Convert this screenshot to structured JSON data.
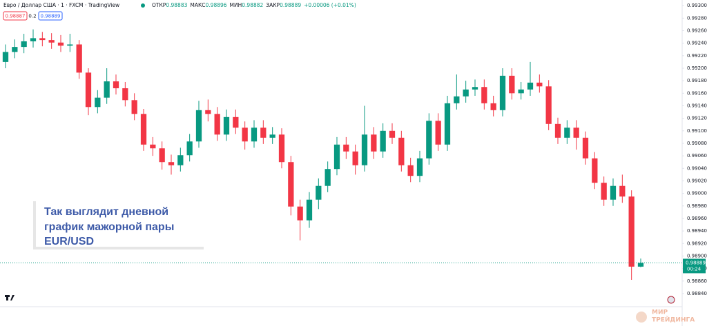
{
  "chart_data": {
    "type": "candlestick",
    "title": "Евро / Доллар США · 1 · FXCM · TradingView",
    "ohlc_labels": [
      "ОТКР",
      "МАКС",
      "МИН",
      "ЗАКР"
    ],
    "change": "+0.00006 (+0.01%)",
    "quote": {
      "bid": "0.98887",
      "spread": "0.2",
      "ask": "0.98889"
    },
    "countdown": "00:24",
    "annotation": [
      "Так выглядит дневной",
      "график мажорной пары",
      "EUR/USD"
    ],
    "watermark": [
      "МИР",
      "ТРЕЙДИНГА"
    ],
    "up_color": "#089981",
    "down_color": "#f23645",
    "ylim": [
      0.98819,
      0.99309
    ],
    "yticks": [
      {
        "value": 0.993,
        "label": "0.99300"
      },
      {
        "value": 0.9928,
        "label": "0.99280"
      },
      {
        "value": 0.9926,
        "label": "0.99260"
      },
      {
        "value": 0.9924,
        "label": "0.99240"
      },
      {
        "value": 0.9922,
        "label": "0.99220"
      },
      {
        "value": 0.992,
        "label": "0.99200"
      },
      {
        "value": 0.9918,
        "label": "0.99180"
      },
      {
        "value": 0.9916,
        "label": "0.99160"
      },
      {
        "value": 0.9914,
        "label": "0.99140"
      },
      {
        "value": 0.9912,
        "label": "0.99120"
      },
      {
        "value": 0.991,
        "label": "0.99100"
      },
      {
        "value": 0.9908,
        "label": "0.99080"
      },
      {
        "value": 0.9906,
        "label": "0.99060"
      },
      {
        "value": 0.9904,
        "label": "0.99040"
      },
      {
        "value": 0.9902,
        "label": "0.99020"
      },
      {
        "value": 0.99,
        "label": "0.99000"
      },
      {
        "value": 0.9898,
        "label": "0.98980"
      },
      {
        "value": 0.9896,
        "label": "0.98960"
      },
      {
        "value": 0.9894,
        "label": "0.98940"
      },
      {
        "value": 0.9892,
        "label": "0.98920"
      },
      {
        "value": 0.989,
        "label": "0.98900"
      },
      {
        "value": 0.9888,
        "label": "0.98880"
      },
      {
        "value": 0.9886,
        "label": "0.98860"
      },
      {
        "value": 0.9884,
        "label": "0.98840"
      }
    ],
    "open": [
      0.9921,
      0.99226,
      0.99234,
      0.99243,
      0.99248,
      0.99245,
      0.99241,
      0.99236,
      0.99238,
      0.99193,
      0.99138,
      0.99153,
      0.99179,
      0.99168,
      0.99149,
      0.99127,
      0.99078,
      0.99072,
      0.9905,
      0.99045,
      0.99061,
      0.99083,
      0.99133,
      0.99127,
      0.99094,
      0.99122,
      0.99105,
      0.99083,
      0.99105,
      0.99089,
      0.99094,
      0.9905,
      0.98979,
      0.98957,
      0.9899,
      0.99012,
      0.99039,
      0.99078,
      0.99067,
      0.99045,
      0.99094,
      0.99067,
      0.991,
      0.99089,
      0.99045,
      0.99028,
      0.99056,
      0.99116,
      0.99078,
      0.99144,
      0.99155,
      0.99166,
      0.9917,
      0.99144,
      0.99133,
      0.99188,
      0.9916,
      0.99166,
      0.99177,
      0.99171,
      0.99111,
      0.99089,
      0.99105,
      0.99089,
      0.99056,
      0.99017,
      0.9899,
      0.99012,
      0.98995,
      0.98883
    ],
    "high": [
      0.99238,
      0.99246,
      0.99255,
      0.99262,
      0.99258,
      0.99256,
      0.99253,
      0.99255,
      0.99245,
      0.992,
      0.99165,
      0.992,
      0.9919,
      0.99178,
      0.9916,
      0.99135,
      0.9909,
      0.99083,
      0.99062,
      0.99073,
      0.99095,
      0.99148,
      0.9915,
      0.99138,
      0.99134,
      0.99134,
      0.99115,
      0.99117,
      0.99117,
      0.99106,
      0.99104,
      0.9906,
      0.9899,
      0.99002,
      0.99024,
      0.99051,
      0.9909,
      0.9909,
      0.99078,
      0.9914,
      0.99106,
      0.99112,
      0.99112,
      0.991,
      0.99057,
      0.99068,
      0.99128,
      0.99128,
      0.99156,
      0.9919,
      0.9918,
      0.99182,
      0.99182,
      0.99156,
      0.992,
      0.992,
      0.99178,
      0.9921,
      0.9919,
      0.99181,
      0.99121,
      0.99117,
      0.99117,
      0.99099,
      0.99066,
      0.99027,
      0.99024,
      0.9903,
      0.99005,
      0.98896
    ],
    "low": [
      0.992,
      0.99216,
      0.99224,
      0.99233,
      0.99235,
      0.99231,
      0.99226,
      0.99226,
      0.99183,
      0.99125,
      0.99128,
      0.99143,
      0.99158,
      0.99139,
      0.99117,
      0.99068,
      0.9906,
      0.99038,
      0.9903,
      0.99035,
      0.99051,
      0.99073,
      0.99115,
      0.99084,
      0.99084,
      0.99095,
      0.9907,
      0.99073,
      0.99079,
      0.99079,
      0.9904,
      0.98965,
      0.98925,
      0.98945,
      0.98975,
      0.99002,
      0.99029,
      0.99055,
      0.9903,
      0.99035,
      0.99055,
      0.99057,
      0.99079,
      0.99035,
      0.99018,
      0.99018,
      0.99046,
      0.99068,
      0.99068,
      0.99134,
      0.99145,
      0.99156,
      0.99134,
      0.99123,
      0.99123,
      0.9915,
      0.9915,
      0.99156,
      0.99161,
      0.99101,
      0.99079,
      0.99079,
      0.9907,
      0.99046,
      0.99007,
      0.9898,
      0.9898,
      0.98985,
      0.98862,
      0.98882
    ],
    "close": [
      0.99226,
      0.99234,
      0.99243,
      0.99248,
      0.99245,
      0.99241,
      0.99236,
      0.99238,
      0.99193,
      0.99138,
      0.99153,
      0.99179,
      0.99168,
      0.99149,
      0.99127,
      0.99078,
      0.99072,
      0.9905,
      0.99045,
      0.99061,
      0.99083,
      0.99133,
      0.99127,
      0.99094,
      0.99122,
      0.99105,
      0.99083,
      0.99105,
      0.99089,
      0.99094,
      0.9905,
      0.98979,
      0.98957,
      0.9899,
      0.99012,
      0.99039,
      0.99078,
      0.99067,
      0.99045,
      0.99094,
      0.99067,
      0.991,
      0.99089,
      0.99045,
      0.99028,
      0.99056,
      0.99116,
      0.99078,
      0.99144,
      0.99155,
      0.99166,
      0.9917,
      0.99144,
      0.99133,
      0.99188,
      0.9916,
      0.99166,
      0.99177,
      0.99171,
      0.99111,
      0.99089,
      0.99105,
      0.99089,
      0.99056,
      0.99017,
      0.9899,
      0.99012,
      0.98995,
      0.98883,
      0.98889
    ]
  }
}
